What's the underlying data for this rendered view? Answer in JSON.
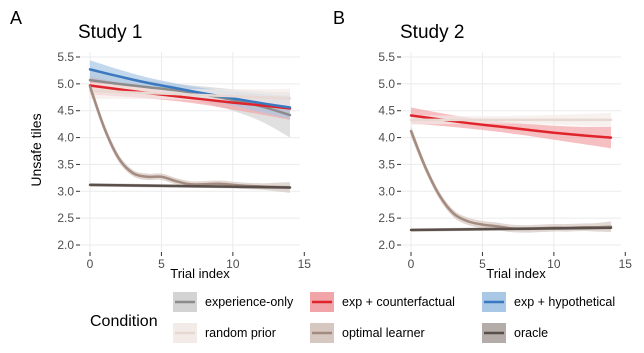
{
  "chart_data": [
    {
      "type": "line",
      "panel_letter": "A",
      "title": "Study 1",
      "xlabel": "Trial index",
      "ylabel": "Unsafe tiles",
      "xlim": [
        0,
        14
      ],
      "ylim": [
        2.0,
        5.5
      ],
      "x_ticks": [
        0,
        5,
        10,
        15
      ],
      "y_ticks": [
        2.0,
        2.5,
        3.0,
        3.5,
        4.0,
        4.5,
        5.0,
        5.5
      ],
      "grid": true,
      "series": [
        {
          "name": "experience-only",
          "x": [
            0,
            2,
            4,
            6,
            8,
            10,
            12,
            14
          ],
          "values": [
            5.07,
            5.0,
            4.94,
            4.88,
            4.8,
            4.7,
            4.58,
            4.42
          ],
          "band": [
            [
              4.87,
              5.27
            ],
            [
              4.85,
              5.15
            ],
            [
              4.82,
              5.06
            ],
            [
              4.76,
              5.0
            ],
            [
              4.65,
              4.95
            ],
            [
              4.5,
              4.9
            ],
            [
              4.3,
              4.86
            ],
            [
              4.0,
              4.84
            ]
          ]
        },
        {
          "name": "exp + counterfactual",
          "x": [
            0,
            2,
            4,
            6,
            8,
            10,
            12,
            14
          ],
          "values": [
            4.97,
            4.9,
            4.83,
            4.77,
            4.71,
            4.65,
            4.6,
            4.54
          ],
          "band": [
            [
              4.8,
              5.14
            ],
            [
              4.77,
              5.03
            ],
            [
              4.73,
              4.93
            ],
            [
              4.68,
              4.86
            ],
            [
              4.61,
              4.81
            ],
            [
              4.52,
              4.78
            ],
            [
              4.43,
              4.77
            ],
            [
              4.33,
              4.75
            ]
          ]
        },
        {
          "name": "exp + hypothetical",
          "x": [
            0,
            2,
            4,
            6,
            8,
            10,
            12,
            14
          ],
          "values": [
            5.27,
            5.14,
            5.02,
            4.92,
            4.82,
            4.73,
            4.64,
            4.56
          ],
          "band": [
            [
              5.1,
              5.44
            ],
            [
              5.01,
              5.27
            ],
            [
              4.92,
              5.12
            ],
            [
              4.83,
              5.01
            ],
            [
              4.72,
              4.92
            ],
            [
              4.6,
              4.86
            ],
            [
              4.47,
              4.81
            ],
            [
              4.35,
              4.77
            ]
          ]
        },
        {
          "name": "random prior",
          "x": [
            0,
            2,
            4,
            6,
            8,
            10,
            12,
            14
          ],
          "values": [
            4.87,
            4.85,
            4.83,
            4.81,
            4.79,
            4.77,
            4.75,
            4.73
          ],
          "band": [
            [
              4.72,
              5.02
            ],
            [
              4.72,
              4.98
            ],
            [
              4.72,
              4.94
            ],
            [
              4.71,
              4.91
            ],
            [
              4.68,
              4.9
            ],
            [
              4.64,
              4.9
            ],
            [
              4.6,
              4.9
            ],
            [
              4.55,
              4.91
            ]
          ]
        },
        {
          "name": "optimal learner",
          "x": [
            0,
            1,
            2,
            3,
            4,
            5,
            6,
            7,
            8,
            9,
            10,
            11,
            12,
            13,
            14
          ],
          "values": [
            4.95,
            4.18,
            3.62,
            3.34,
            3.27,
            3.27,
            3.19,
            3.13,
            3.13,
            3.14,
            3.12,
            3.1,
            3.09,
            3.08,
            3.07
          ],
          "band": [
            [
              4.85,
              5.05
            ],
            [
              4.1,
              4.26
            ],
            [
              3.55,
              3.69
            ],
            [
              3.28,
              3.4
            ],
            [
              3.21,
              3.33
            ],
            [
              3.21,
              3.33
            ],
            [
              3.13,
              3.25
            ],
            [
              3.07,
              3.19
            ],
            [
              3.07,
              3.19
            ],
            [
              3.08,
              3.2
            ],
            [
              3.06,
              3.18
            ],
            [
              3.04,
              3.16
            ],
            [
              3.03,
              3.15
            ],
            [
              3.0,
              3.16
            ],
            [
              2.97,
              3.17
            ]
          ]
        },
        {
          "name": "oracle",
          "x": [
            0,
            14
          ],
          "values": [
            3.12,
            3.07
          ],
          "band": [
            [
              3.09,
              3.15
            ],
            [
              3.04,
              3.1
            ]
          ]
        }
      ]
    },
    {
      "type": "line",
      "panel_letter": "B",
      "title": "Study 2",
      "xlabel": "Trial index",
      "ylabel": "",
      "xlim": [
        0,
        14
      ],
      "ylim": [
        2.0,
        5.5
      ],
      "x_ticks": [
        0,
        5,
        10,
        15
      ],
      "y_ticks": [
        2.0,
        2.5,
        3.0,
        3.5,
        4.0,
        4.5,
        5.0,
        5.5
      ],
      "grid": true,
      "series": [
        {
          "name": "exp + counterfactual",
          "x": [
            0,
            2,
            4,
            6,
            8,
            10,
            12,
            14
          ],
          "values": [
            4.41,
            4.34,
            4.27,
            4.21,
            4.15,
            4.09,
            4.04,
            4.0
          ],
          "band": [
            [
              4.26,
              4.56
            ],
            [
              4.22,
              4.46
            ],
            [
              4.17,
              4.37
            ],
            [
              4.11,
              4.31
            ],
            [
              4.04,
              4.26
            ],
            [
              3.96,
              4.22
            ],
            [
              3.88,
              4.2
            ],
            [
              3.8,
              4.2
            ]
          ]
        },
        {
          "name": "random prior",
          "x": [
            0,
            2,
            4,
            6,
            8,
            10,
            12,
            14
          ],
          "values": [
            4.33,
            4.33,
            4.33,
            4.33,
            4.33,
            4.33,
            4.33,
            4.33
          ],
          "band": [
            [
              4.24,
              4.42
            ],
            [
              4.25,
              4.41
            ],
            [
              4.26,
              4.4
            ],
            [
              4.26,
              4.4
            ],
            [
              4.25,
              4.41
            ],
            [
              4.24,
              4.42
            ],
            [
              4.22,
              4.44
            ],
            [
              4.2,
              4.46
            ]
          ]
        },
        {
          "name": "optimal learner",
          "x": [
            0,
            1,
            2,
            3,
            4,
            5,
            6,
            7,
            8,
            9,
            10,
            11,
            12,
            13,
            14
          ],
          "values": [
            4.12,
            3.45,
            2.92,
            2.58,
            2.44,
            2.38,
            2.35,
            2.31,
            2.3,
            2.31,
            2.32,
            2.32,
            2.33,
            2.33,
            2.34
          ],
          "band": [
            [
              4.02,
              4.22
            ],
            [
              3.37,
              3.53
            ],
            [
              2.85,
              2.99
            ],
            [
              2.51,
              2.65
            ],
            [
              2.37,
              2.51
            ],
            [
              2.31,
              2.45
            ],
            [
              2.28,
              2.42
            ],
            [
              2.24,
              2.38
            ],
            [
              2.23,
              2.37
            ],
            [
              2.24,
              2.38
            ],
            [
              2.25,
              2.39
            ],
            [
              2.25,
              2.39
            ],
            [
              2.26,
              2.4
            ],
            [
              2.25,
              2.41
            ],
            [
              2.24,
              2.44
            ]
          ]
        },
        {
          "name": "oracle",
          "x": [
            0,
            14
          ],
          "values": [
            2.28,
            2.32
          ],
          "band": [
            [
              2.25,
              2.31
            ],
            [
              2.29,
              2.35
            ]
          ]
        }
      ]
    }
  ],
  "legend": {
    "title": "Condition",
    "placement": "bottom",
    "items": [
      {
        "name": "experience-only",
        "color": "#8c8c8c",
        "fill": "#d3d3d3"
      },
      {
        "name": "exp + counterfactual",
        "color": "#e0242c",
        "fill": "#f2a5a8"
      },
      {
        "name": "exp + hypothetical",
        "color": "#3a78c0",
        "fill": "#a9c8e6"
      },
      {
        "name": "random prior",
        "color": "#e8d8d2",
        "fill": "#f3ebe8"
      },
      {
        "name": "optimal learner",
        "color": "#a48b80",
        "fill": "#d6c8c1"
      },
      {
        "name": "oracle",
        "color": "#5a4f4a",
        "fill": "#b4aca8"
      }
    ]
  }
}
